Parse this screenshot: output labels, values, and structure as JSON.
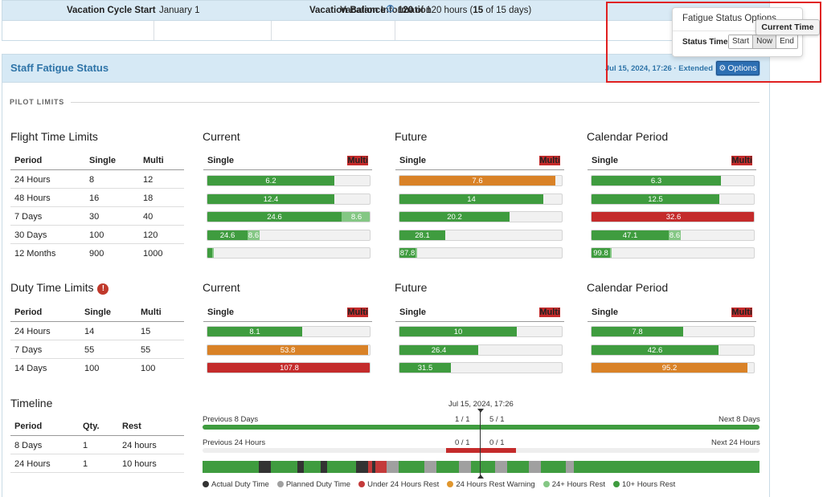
{
  "vacation": {
    "title": "Vacation Information",
    "cycle_label": "Vacation Cycle Start",
    "cycle_value": "January 1",
    "balance_label": "Vacation Balance",
    "balance_help": "?",
    "balance_bold1": "120",
    "balance_text1": " of 120 hours (",
    "balance_bold2": "15",
    "balance_text2": " of 15 days)"
  },
  "fatigue": {
    "title": "Staff Fatigue Status",
    "meta": "Jul 15, 2024, 17:26 · Extended",
    "options_label": "Options",
    "section_label": "PILOT LIMITS"
  },
  "popover": {
    "title": "Fatigue Status Options",
    "status_time_label": "Status Time",
    "buttons": [
      "Start",
      "Now",
      "End"
    ],
    "active": "Now",
    "tooltip": "Current Time"
  },
  "flight": {
    "title": "Flight Time Limits",
    "headers": [
      "Period",
      "Single",
      "Multi"
    ],
    "rows": [
      [
        "24 Hours",
        "8",
        "12"
      ],
      [
        "48 Hours",
        "16",
        "18"
      ],
      [
        "7 Days",
        "30",
        "40"
      ],
      [
        "30 Days",
        "100",
        "120"
      ],
      [
        "12 Months",
        "900",
        "1000"
      ]
    ]
  },
  "duty": {
    "title": "Duty Time Limits",
    "warning": "!",
    "headers": [
      "Period",
      "Single",
      "Multi"
    ],
    "rows": [
      [
        "24 Hours",
        "14",
        "15"
      ],
      [
        "7 Days",
        "55",
        "55"
      ],
      [
        "14 Days",
        "100",
        "100"
      ]
    ]
  },
  "timeline_table": {
    "title": "Timeline",
    "headers": [
      "Period",
      "Qty.",
      "Rest"
    ],
    "rows": [
      [
        "8 Days",
        "1",
        "24 hours"
      ],
      [
        "24 Hours",
        "1",
        "10 hours"
      ]
    ]
  },
  "columns": {
    "current": "Current",
    "future": "Future",
    "calendar": "Calendar Period",
    "single": "Single",
    "multi": "Multi"
  },
  "flight_bars": {
    "current": [
      [
        {
          "v": "6.2",
          "f": 0.775,
          "c": "g"
        }
      ],
      [
        {
          "v": "12.4",
          "f": 0.775,
          "c": "g"
        }
      ],
      [
        {
          "v": "24.6",
          "f": 0.82,
          "c": "g"
        },
        {
          "v": "8.6",
          "f": 0.18,
          "c": "lg"
        }
      ],
      [
        {
          "v": "24.6",
          "f": 0.246,
          "c": "g"
        },
        {
          "v": "8.6",
          "f": 0.072,
          "c": "lg"
        }
      ],
      [
        {
          "v": "",
          "f": 0.027,
          "c": "g"
        },
        {
          "v": "",
          "f": 0.008,
          "c": "lg"
        }
      ]
    ],
    "future": [
      [
        {
          "v": "7.6",
          "f": 0.95,
          "c": "o"
        }
      ],
      [
        {
          "v": "14",
          "f": 0.875,
          "c": "g"
        }
      ],
      [
        {
          "v": "20.2",
          "f": 0.673,
          "c": "g"
        }
      ],
      [
        {
          "v": "28.1",
          "f": 0.281,
          "c": "g"
        }
      ],
      [
        {
          "v": "87.8",
          "f": 0.098,
          "c": "g"
        },
        {
          "v": "",
          "f": 0.01,
          "c": "lg"
        }
      ]
    ],
    "calendar": [
      [
        {
          "v": "6.3",
          "f": 0.788,
          "c": "g"
        }
      ],
      [
        {
          "v": "12.5",
          "f": 0.781,
          "c": "g"
        }
      ],
      [
        {
          "v": "32.6",
          "f": 1.0,
          "c": "r"
        }
      ],
      [
        {
          "v": "47.1",
          "f": 0.471,
          "c": "g"
        },
        {
          "v": "8.6",
          "f": 0.072,
          "c": "lg"
        }
      ],
      [
        {
          "v": "99.8",
          "f": 0.111,
          "c": "g"
        },
        {
          "v": "",
          "f": 0.01,
          "c": "lg"
        }
      ]
    ]
  },
  "duty_bars": {
    "current": [
      [
        {
          "v": "8.1",
          "f": 0.579,
          "c": "g"
        }
      ],
      [
        {
          "v": "53.8",
          "f": 0.978,
          "c": "o"
        }
      ],
      [
        {
          "v": "107.8",
          "f": 1.0,
          "c": "r"
        }
      ]
    ],
    "future": [
      [
        {
          "v": "10",
          "f": 0.714,
          "c": "g"
        }
      ],
      [
        {
          "v": "26.4",
          "f": 0.48,
          "c": "g"
        }
      ],
      [
        {
          "v": "31.5",
          "f": 0.315,
          "c": "g"
        }
      ]
    ],
    "calendar": [
      [
        {
          "v": "7.8",
          "f": 0.557,
          "c": "g"
        }
      ],
      [
        {
          "v": "42.6",
          "f": 0.775,
          "c": "g"
        }
      ],
      [
        {
          "v": "95.2",
          "f": 0.952,
          "c": "o"
        }
      ]
    ]
  },
  "timeline": {
    "now_label": "Jul 15, 2024, 17:26",
    "prev8": "Previous 8 Days",
    "next8": "Next 8 Days",
    "count8_left": "1 / 1",
    "count8_right": "5 / 1",
    "prev24": "Previous 24 Hours",
    "next24": "Next 24 Hours",
    "count24_left": "0 / 1",
    "count24_right": "0 / 1",
    "legend": [
      {
        "label": "Actual Duty Time",
        "color": "#333333"
      },
      {
        "label": "Planned Duty Time",
        "color": "#a0a0a0"
      },
      {
        "label": "Under 24 Hours Rest",
        "color": "#c43a3a"
      },
      {
        "label": "24 Hours Rest Warning",
        "color": "#e0962e"
      },
      {
        "label": "24+ Hours Rest",
        "color": "#84c784"
      },
      {
        "label": "10+ Hours Rest",
        "color": "#3f9c3f"
      }
    ],
    "colors": {
      "actual": "#333333",
      "planned": "#a0a0a0",
      "under24": "#c43a3a",
      "rest10": "#3f9c3f"
    }
  }
}
